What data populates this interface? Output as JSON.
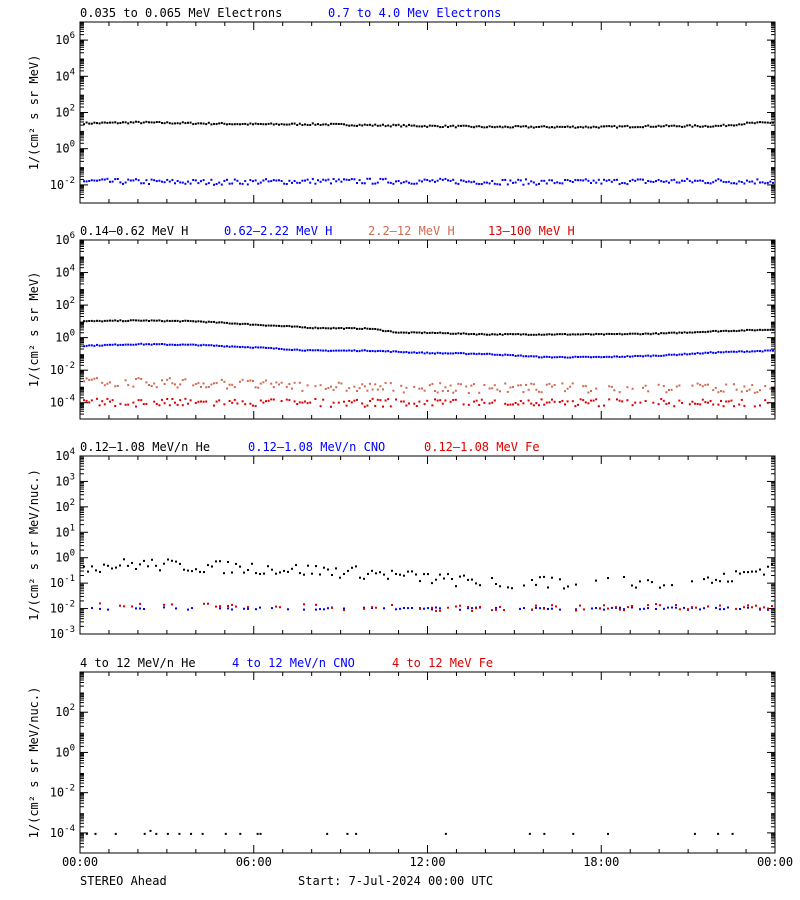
{
  "footer": {
    "left": "STEREO Ahead",
    "center": "Start:  7-Jul-2024 00:00 UTC"
  },
  "colors": {
    "black": "#000000",
    "blue": "#0000ff",
    "salmon": "#d06a50",
    "red": "#dd0000"
  },
  "chart_data": [
    {
      "type": "scatter",
      "ylabel": "1/(cm² s sr MeV)",
      "yscale": "log",
      "ylim_exp": [
        -3,
        7
      ],
      "tick_exps": [
        -2,
        0,
        2,
        4,
        6
      ],
      "tick_labels": [
        "10-2",
        "100",
        "102",
        "104",
        "106"
      ],
      "x_range_hours": [
        0,
        24
      ],
      "legend": [
        "0.035 to 0.065 MeV Electrons",
        "0.7 to 4.0 Mev Electrons"
      ],
      "series": [
        {
          "name": "0.035 to 0.065 MeV Electrons",
          "color": "#000000",
          "x": [
            0,
            2,
            4,
            6,
            8,
            10,
            12,
            14,
            16,
            18,
            20,
            22,
            23,
            24
          ],
          "y_exp": [
            1.4,
            1.45,
            1.4,
            1.35,
            1.35,
            1.3,
            1.25,
            1.2,
            1.2,
            1.2,
            1.25,
            1.25,
            1.4,
            1.45
          ],
          "jitter": 0.05
        },
        {
          "name": "0.7 to 4.0 Mev Electrons",
          "color": "#0000ff",
          "x": [
            0,
            4,
            8,
            12,
            16,
            20,
            24
          ],
          "y_exp": [
            -1.8,
            -1.85,
            -1.8,
            -1.8,
            -1.85,
            -1.8,
            -1.8
          ],
          "jitter": 0.15
        }
      ]
    },
    {
      "type": "scatter",
      "ylabel": "1/(cm² s sr MeV)",
      "yscale": "log",
      "ylim_exp": [
        -5,
        6
      ],
      "tick_exps": [
        -4,
        -2,
        0,
        2,
        4,
        6
      ],
      "tick_labels": [
        "10-4",
        "10-2",
        "100",
        "102",
        "104",
        "106"
      ],
      "x_range_hours": [
        0,
        24
      ],
      "legend": [
        "0.14–0.62 MeV H",
        "0.62–2.22 MeV H",
        "2.2–12 MeV H",
        "13–100 MeV H"
      ],
      "series": [
        {
          "name": "0.14–0.62 MeV H",
          "color": "#000000",
          "x": [
            0,
            2,
            4,
            6,
            8,
            10,
            11,
            12,
            14,
            16,
            18,
            20,
            22,
            24
          ],
          "y_exp": [
            1.0,
            1.05,
            1.0,
            0.8,
            0.6,
            0.55,
            0.3,
            0.3,
            0.2,
            0.2,
            0.2,
            0.25,
            0.4,
            0.5
          ],
          "jitter": 0.03
        },
        {
          "name": "0.62–2.22 MeV H",
          "color": "#0000ff",
          "x": [
            0,
            2,
            4,
            6,
            8,
            10,
            12,
            14,
            16,
            18,
            20,
            22,
            24
          ],
          "y_exp": [
            -0.5,
            -0.4,
            -0.45,
            -0.6,
            -0.8,
            -0.8,
            -0.95,
            -1.0,
            -1.2,
            -1.2,
            -1.1,
            -0.9,
            -0.8
          ],
          "jitter": 0.03
        },
        {
          "name": "2.2–12 MeV H",
          "color": "#d06a50",
          "x": [
            0,
            4,
            8,
            12,
            16,
            20,
            24
          ],
          "y_exp": [
            -2.7,
            -2.8,
            -3.0,
            -3.1,
            -3.1,
            -3.1,
            -3.1
          ],
          "jitter": 0.3
        },
        {
          "name": "13–100 MeV H",
          "color": "#dd0000",
          "x": [
            0,
            6,
            12,
            18,
            24
          ],
          "y_exp": [
            -4.0,
            -4.0,
            -4.0,
            -4.0,
            -4.0
          ],
          "jitter": 0.25
        }
      ]
    },
    {
      "type": "scatter",
      "ylabel": "1/(cm² s sr MeV/nuc.)",
      "yscale": "log",
      "ylim_exp": [
        -3,
        4
      ],
      "tick_exps": [
        -3,
        -2,
        -1,
        0,
        1,
        2,
        3,
        4
      ],
      "tick_labels": [
        "10-3",
        "10-2",
        "10-1",
        "100",
        "101",
        "102",
        "103",
        "104"
      ],
      "x_range_hours": [
        0,
        24
      ],
      "legend": [
        "0.12–1.08 MeV/n He",
        "0.12–1.08 MeV/n CNO",
        "0.12–1.08 MeV Fe"
      ],
      "series": [
        {
          "name": "0.12–1.08 MeV/n He",
          "color": "#000000",
          "x": [
            0,
            2,
            4,
            6,
            8,
            10,
            12,
            14,
            16,
            18,
            20,
            22,
            24
          ],
          "y_exp": [
            -0.35,
            -0.25,
            -0.35,
            -0.4,
            -0.5,
            -0.6,
            -0.8,
            -1.0,
            -1.0,
            -1.0,
            -1.0,
            -0.9,
            -0.3
          ],
          "jitter": 0.25
        },
        {
          "name": "0.12–1.08 MeV/n CNO",
          "color": "#0000ff",
          "x": [
            0,
            12,
            24
          ],
          "y_exp": [
            -2.0,
            -2.0,
            -2.0
          ],
          "jitter": 0.05
        },
        {
          "name": "0.12–1.08 MeV Fe",
          "color": "#dd0000",
          "x": [
            0,
            6,
            12,
            24
          ],
          "y_exp": [
            -1.8,
            -1.9,
            -2.0,
            -1.9
          ],
          "jitter": 0.12
        }
      ]
    },
    {
      "type": "scatter",
      "ylabel": "1/(cm² s sr MeV/nuc.)",
      "yscale": "log",
      "ylim_exp": [
        -5,
        4
      ],
      "tick_exps": [
        -4,
        -2,
        0,
        2
      ],
      "tick_labels": [
        "10-4",
        "10-2",
        "100",
        "102"
      ],
      "x_range_hours": [
        0,
        24
      ],
      "legend": [
        "4 to 12 MeV/n He",
        "4 to 12 MeV/n CNO",
        "4 to 12 MeV Fe"
      ],
      "series": [
        {
          "name": "4 to 12 MeV/n He",
          "color": "#000000",
          "x": [
            0.2,
            0.5,
            1.2,
            2.2,
            2.4,
            2.6,
            3.0,
            3.4,
            3.8,
            4.2,
            5.0,
            5.5,
            6.1,
            6.2,
            8.5,
            9.2,
            9.5,
            12.6,
            15.5,
            16.0,
            17.0,
            18.2,
            21.2,
            22.0,
            22.5
          ],
          "y_exp": [
            -4,
            -4,
            -4,
            -4,
            -3.85,
            -4,
            -4,
            -4,
            -4,
            -4,
            -4,
            -4,
            -4,
            -4,
            -4,
            -4,
            -4,
            -4,
            -4,
            -4,
            -4,
            -4,
            -4,
            -4,
            -4
          ],
          "jitter": 0
        },
        {
          "name": "4 to 12 MeV/n CNO",
          "color": "#0000ff",
          "x": [],
          "y_exp": [],
          "jitter": 0
        },
        {
          "name": "4 to 12 MeV Fe",
          "color": "#dd0000",
          "x": [],
          "y_exp": [],
          "jitter": 0
        }
      ]
    }
  ],
  "x_axis": {
    "tick_hours": [
      0,
      6,
      12,
      18,
      24
    ],
    "tick_labels": [
      "00:00",
      "06:00",
      "12:00",
      "18:00",
      "00:00"
    ]
  }
}
